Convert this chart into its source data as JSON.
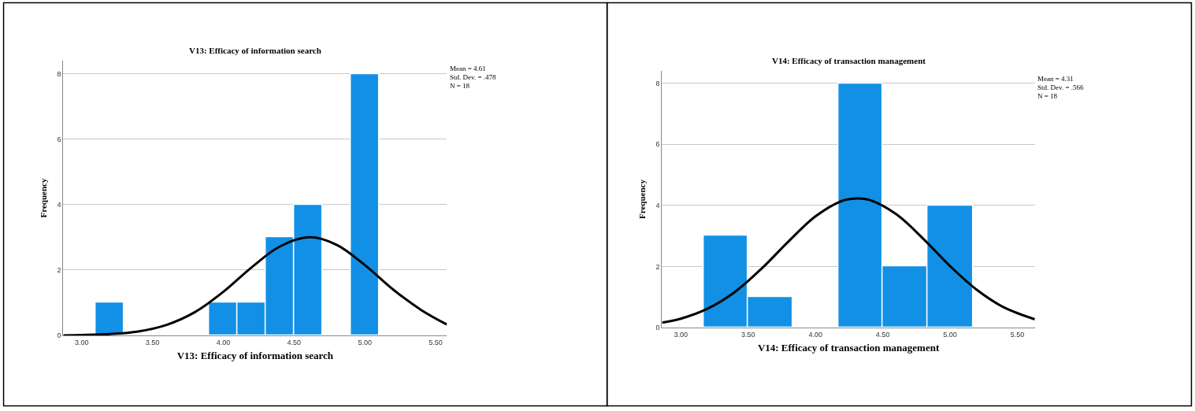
{
  "chart_data": [
    {
      "type": "histogram",
      "title": "V13: Efficacy of information search",
      "xlabel": "V13: Efficacy of information search",
      "ylabel": "Frequency",
      "bins": [
        3.1,
        3.3,
        3.5,
        3.7,
        3.9,
        4.1,
        4.3,
        4.5,
        4.7,
        4.9,
        5.1
      ],
      "values": [
        1,
        0,
        0,
        0,
        1,
        1,
        3,
        4,
        0,
        8
      ],
      "color": "#1290e6",
      "series": [
        {
          "type": "line",
          "color": "#000000",
          "x": [
            2.87,
            3.0,
            3.2,
            3.4,
            3.6,
            3.8,
            4.0,
            4.2,
            4.4,
            4.61,
            4.8,
            5.0,
            5.2,
            5.4,
            5.58
          ],
          "values": [
            0.0,
            0.01,
            0.04,
            0.12,
            0.32,
            0.71,
            1.33,
            2.08,
            2.72,
            3.0,
            2.77,
            2.15,
            1.4,
            0.77,
            0.33
          ]
        }
      ],
      "xlim": [
        2.87,
        5.58
      ],
      "ylim": [
        0,
        8.4
      ],
      "xticks": [
        {
          "value": 3,
          "label": "3.00"
        },
        {
          "value": 3.5,
          "label": "3.50"
        },
        {
          "value": 4,
          "label": "4.00"
        },
        {
          "value": 4.5,
          "label": "4.50"
        },
        {
          "value": 5,
          "label": "5.00"
        },
        {
          "value": 5.5,
          "label": "5.50"
        }
      ],
      "yticks": [
        0,
        2,
        4,
        6,
        8
      ],
      "grid": "y",
      "annotations": [
        "Mean = 4.61",
        "Std. Dev. = .478",
        "N = 18"
      ]
    },
    {
      "type": "histogram",
      "title": "V14: Efficacy of transaction management",
      "xlabel": "V14: Efficacy of transaction management",
      "ylabel": "Frequency",
      "bins": [
        3.17,
        3.5,
        3.83,
        4.17,
        4.5,
        4.83,
        5.17
      ],
      "values": [
        3,
        1,
        0,
        8,
        2,
        4
      ],
      "color": "#1290e6",
      "series": [
        {
          "type": "line",
          "color": "#000000",
          "x": [
            2.86,
            3.0,
            3.2,
            3.4,
            3.6,
            3.8,
            4.0,
            4.2,
            4.31,
            4.4,
            4.6,
            4.8,
            5.0,
            5.2,
            5.4,
            5.63
          ],
          "values": [
            0.16,
            0.29,
            0.62,
            1.16,
            1.93,
            2.82,
            3.64,
            4.15,
            4.23,
            4.18,
            3.71,
            2.91,
            2.01,
            1.23,
            0.66,
            0.27
          ]
        }
      ],
      "xlim": [
        2.86,
        5.63
      ],
      "ylim": [
        0,
        8.4
      ],
      "xticks": [
        {
          "value": 3,
          "label": "3.00"
        },
        {
          "value": 3.5,
          "label": "3.50"
        },
        {
          "value": 4,
          "label": "4.00"
        },
        {
          "value": 4.5,
          "label": "4.50"
        },
        {
          "value": 5,
          "label": "5.00"
        },
        {
          "value": 5.5,
          "label": "5.50"
        }
      ],
      "yticks": [
        0,
        2,
        4,
        6,
        8
      ],
      "grid": "y",
      "annotations": [
        "Mean = 4.31",
        "Std. Dev. = .566",
        "N = 18"
      ]
    }
  ]
}
